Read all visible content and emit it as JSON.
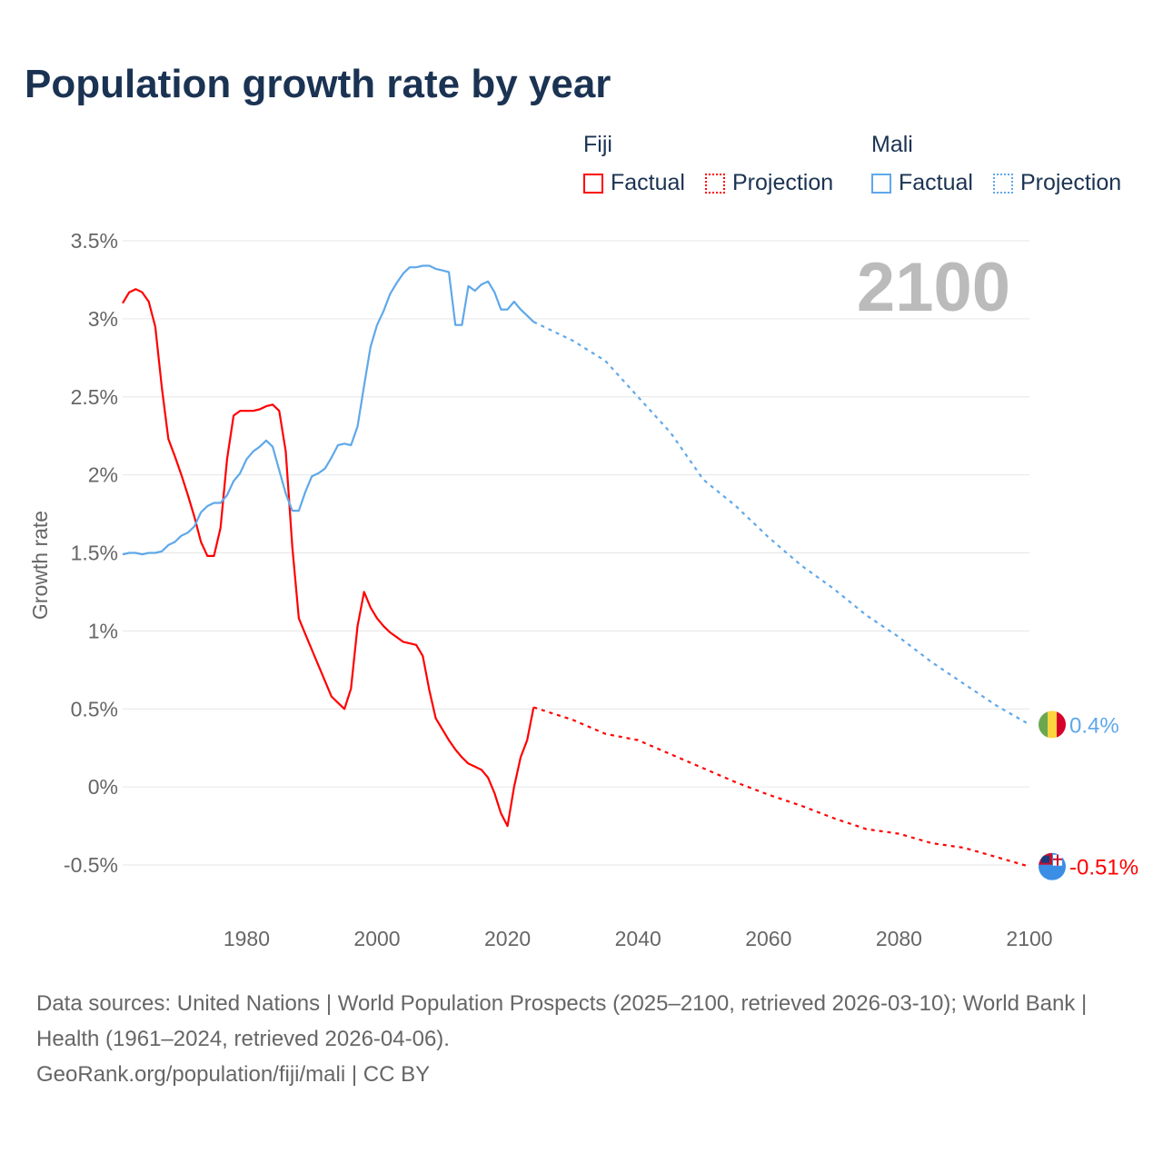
{
  "title": "Population growth rate by year",
  "legend": {
    "groups": [
      {
        "name": "Fiji",
        "color": "#ff0000",
        "factual": "Factual",
        "projection": "Projection"
      },
      {
        "name": "Mali",
        "color": "#5fa8ea",
        "factual": "Factual",
        "projection": "Projection"
      }
    ]
  },
  "chart_data": {
    "type": "line",
    "title": "Population growth rate by year",
    "ylabel": "Growth rate",
    "xlabel": "",
    "xlim": [
      1961,
      2100
    ],
    "ylim": [
      -0.5,
      3.5
    ],
    "yticks": [
      -0.5,
      0,
      0.5,
      1,
      1.5,
      2,
      2.5,
      3,
      3.5
    ],
    "ytick_labels": [
      "-0.5%",
      "0%",
      "0.5%",
      "1%",
      "1.5%",
      "2%",
      "2.5%",
      "3%",
      "3.5%"
    ],
    "xticks": [
      1980,
      2000,
      2020,
      2040,
      2060,
      2080,
      2100
    ],
    "xtick_labels": [
      "1980",
      "2000",
      "2020",
      "2040",
      "2060",
      "2080",
      "2100"
    ],
    "grid": true,
    "year_label": "2100",
    "series": [
      {
        "name": "Fiji",
        "color": "#ff0000",
        "end_label": "-0.51%",
        "factual": {
          "x": [
            1961,
            1962,
            1963,
            1964,
            1965,
            1966,
            1967,
            1968,
            1969,
            1970,
            1971,
            1972,
            1973,
            1974,
            1975,
            1976,
            1977,
            1978,
            1979,
            1980,
            1981,
            1982,
            1983,
            1984,
            1985,
            1986,
            1987,
            1988,
            1989,
            1990,
            1991,
            1992,
            1993,
            1994,
            1995,
            1996,
            1997,
            1998,
            1999,
            2000,
            2001,
            2002,
            2003,
            2004,
            2005,
            2006,
            2007,
            2008,
            2009,
            2010,
            2011,
            2012,
            2013,
            2014,
            2015,
            2016,
            2017,
            2018,
            2019,
            2020,
            2021,
            2022,
            2023,
            2024
          ],
          "y": [
            3.1,
            3.17,
            3.19,
            3.17,
            3.11,
            2.95,
            2.56,
            2.23,
            2.12,
            2.0,
            1.87,
            1.73,
            1.57,
            1.48,
            1.48,
            1.66,
            2.1,
            2.38,
            2.41,
            2.41,
            2.41,
            2.42,
            2.44,
            2.45,
            2.41,
            2.15,
            1.54,
            1.08,
            0.98,
            0.88,
            0.78,
            0.68,
            0.58,
            0.54,
            0.5,
            0.63,
            1.03,
            1.25,
            1.15,
            1.08,
            1.03,
            0.99,
            0.96,
            0.93,
            0.92,
            0.91,
            0.84,
            0.62,
            0.44,
            0.37,
            0.3,
            0.24,
            0.19,
            0.15,
            0.13,
            0.11,
            0.06,
            -0.04,
            -0.17,
            -0.25,
            0.0,
            0.19,
            0.3,
            0.51
          ]
        },
        "projection": {
          "x": [
            2024,
            2030,
            2035,
            2040,
            2045,
            2050,
            2055,
            2060,
            2065,
            2070,
            2075,
            2080,
            2085,
            2090,
            2095,
            2100
          ],
          "y": [
            0.51,
            0.43,
            0.34,
            0.3,
            0.21,
            0.12,
            0.03,
            -0.05,
            -0.12,
            -0.2,
            -0.27,
            -0.3,
            -0.36,
            -0.39,
            -0.45,
            -0.51
          ]
        }
      },
      {
        "name": "Mali",
        "color": "#5fa8ea",
        "end_label": "0.4%",
        "factual": {
          "x": [
            1961,
            1962,
            1963,
            1964,
            1965,
            1966,
            1967,
            1968,
            1969,
            1970,
            1971,
            1972,
            1973,
            1974,
            1975,
            1976,
            1977,
            1978,
            1979,
            1980,
            1981,
            1982,
            1983,
            1984,
            1985,
            1986,
            1987,
            1988,
            1989,
            1990,
            1991,
            1992,
            1993,
            1994,
            1995,
            1996,
            1997,
            1998,
            1999,
            2000,
            2001,
            2002,
            2003,
            2004,
            2005,
            2006,
            2007,
            2008,
            2009,
            2010,
            2011,
            2012,
            2013,
            2014,
            2015,
            2016,
            2017,
            2018,
            2019,
            2020,
            2021,
            2022,
            2023,
            2024
          ],
          "y": [
            1.49,
            1.5,
            1.5,
            1.49,
            1.5,
            1.5,
            1.51,
            1.55,
            1.57,
            1.61,
            1.63,
            1.67,
            1.76,
            1.8,
            1.82,
            1.82,
            1.87,
            1.96,
            2.01,
            2.1,
            2.15,
            2.18,
            2.22,
            2.18,
            2.03,
            1.88,
            1.77,
            1.77,
            1.89,
            1.99,
            2.01,
            2.04,
            2.11,
            2.19,
            2.2,
            2.19,
            2.31,
            2.57,
            2.82,
            2.96,
            3.05,
            3.16,
            3.23,
            3.29,
            3.33,
            3.33,
            3.34,
            3.34,
            3.32,
            3.31,
            3.3,
            2.96,
            2.96,
            3.21,
            3.18,
            3.22,
            3.24,
            3.17,
            3.06,
            3.06,
            3.11,
            3.06,
            3.02,
            2.98
          ]
        },
        "projection": {
          "x": [
            2024,
            2030,
            2035,
            2040,
            2045,
            2050,
            2055,
            2060,
            2065,
            2070,
            2075,
            2080,
            2085,
            2090,
            2095,
            2100
          ],
          "y": [
            2.98,
            2.86,
            2.73,
            2.5,
            2.27,
            1.97,
            1.8,
            1.6,
            1.42,
            1.27,
            1.1,
            0.96,
            0.8,
            0.66,
            0.52,
            0.4
          ]
        }
      }
    ]
  },
  "footer": {
    "sources": "Data sources: United Nations | World Population Prospects (2025–2100, retrieved 2026-03-10); World Bank | Health (1961–2024, retrieved 2026-04-06).",
    "credit": "GeoRank.org/population/fiji/mali | CC BY"
  }
}
